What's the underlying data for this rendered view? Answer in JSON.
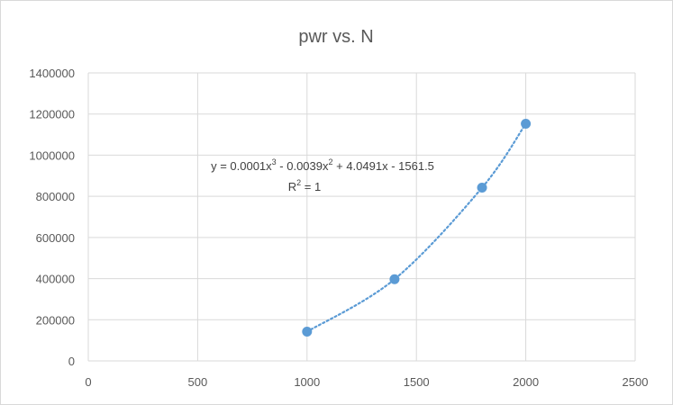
{
  "chart_data": {
    "type": "scatter",
    "title": "pwr vs. N",
    "xlabel": "",
    "ylabel": "",
    "xlim": [
      0,
      2500
    ],
    "ylim": [
      0,
      1400000
    ],
    "x_ticks": [
      0,
      500,
      1000,
      1500,
      2000,
      2500
    ],
    "x_tick_labels": [
      "0",
      "500",
      "1000",
      "1500",
      "2000",
      "2500"
    ],
    "y_ticks": [
      0,
      200000,
      400000,
      600000,
      800000,
      1000000,
      1200000,
      1400000
    ],
    "y_tick_labels": [
      "0",
      "200000",
      "400000",
      "600000",
      "800000",
      "1000000",
      "1200000",
      "1400000"
    ],
    "grid": true,
    "legend": "none",
    "series": [
      {
        "x": [
          1000,
          1400,
          1800,
          2000
        ],
        "y": [
          142000,
          397000,
          842000,
          1153000
        ],
        "marker_color": "#5b9bd5"
      }
    ],
    "trendline": {
      "type": "polynomial",
      "order": 3,
      "style": "dotted",
      "color": "#5b9bd5",
      "equation_parts": {
        "a": "y = 0.0001x",
        "a_exp": "3",
        "b": " - 0.0039x",
        "b_exp": "2",
        "c": " + 4.0491x - 1561.5"
      },
      "r2_parts": {
        "label": "R",
        "label_exp": "2",
        "value": " = 1"
      }
    }
  }
}
